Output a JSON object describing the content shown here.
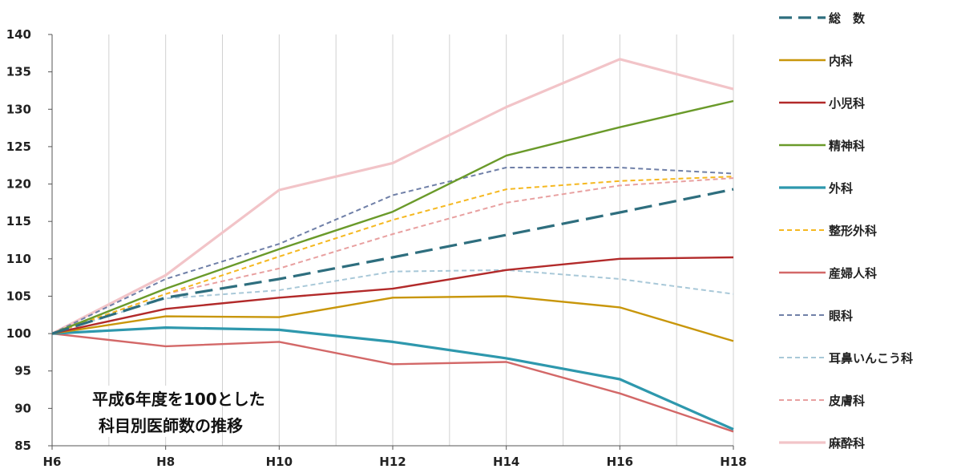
{
  "chart_data": {
    "type": "line",
    "title": "",
    "xlabel": "",
    "ylabel": "",
    "categories": [
      "H6",
      "H8",
      "H10",
      "H12",
      "H14",
      "H16",
      "H18"
    ],
    "ylim": [
      85,
      140
    ],
    "yticks": [
      "85",
      "90",
      "95",
      "100",
      "105",
      "110",
      "115",
      "120",
      "125",
      "130",
      "135",
      "140"
    ],
    "grid": "vertical",
    "legend_position": "right",
    "annotation": [
      "平成6年度を100とした",
      "科目別医師数の推移"
    ],
    "series": [
      {
        "name": "総　数",
        "color": "#2e6e7e",
        "style": "dash-thick",
        "values": [
          100,
          104.8,
          107.3,
          110.2,
          113.2,
          116.2,
          119.3
        ]
      },
      {
        "name": "内科",
        "color": "#c8960a",
        "style": "solid",
        "values": [
          100,
          102.3,
          102.2,
          104.8,
          105.0,
          103.5,
          99.0
        ]
      },
      {
        "name": "小児科",
        "color": "#b22a2a",
        "style": "solid",
        "values": [
          100,
          103.3,
          104.8,
          106.0,
          108.5,
          110.0,
          110.2
        ]
      },
      {
        "name": "精神科",
        "color": "#6a9a2a",
        "style": "solid",
        "values": [
          100,
          106.0,
          111.3,
          116.3,
          123.8,
          127.6,
          131.1
        ]
      },
      {
        "name": "外科",
        "color": "#2e98ad",
        "style": "solid-thick",
        "values": [
          100,
          100.8,
          100.5,
          98.9,
          96.7,
          93.9,
          87.2
        ]
      },
      {
        "name": "整形外科",
        "color": "#f5b820",
        "style": "dashed",
        "values": [
          100,
          105.3,
          110.3,
          115.2,
          119.3,
          120.4,
          121.0
        ]
      },
      {
        "name": "産婦人科",
        "color": "#d36868",
        "style": "solid",
        "values": [
          100,
          98.3,
          98.9,
          95.9,
          96.2,
          92.0,
          86.9
        ]
      },
      {
        "name": "眼科",
        "color": "#7080a8",
        "style": "dashed",
        "values": [
          100,
          107.3,
          112.0,
          118.5,
          122.2,
          122.2,
          121.4
        ]
      },
      {
        "name": "耳鼻いんこう科",
        "color": "#a8c8d8",
        "style": "dashed",
        "values": [
          100,
          104.7,
          105.8,
          108.3,
          108.5,
          107.3,
          105.3
        ]
      },
      {
        "name": "皮膚科",
        "color": "#e8a0a0",
        "style": "dashed",
        "values": [
          100,
          105.3,
          108.7,
          113.3,
          117.5,
          119.8,
          120.8
        ]
      },
      {
        "name": "麻酔科",
        "color": "#f2c4c8",
        "style": "solid-thick",
        "values": [
          100,
          107.8,
          119.2,
          122.8,
          130.3,
          136.7,
          132.7
        ]
      }
    ]
  }
}
